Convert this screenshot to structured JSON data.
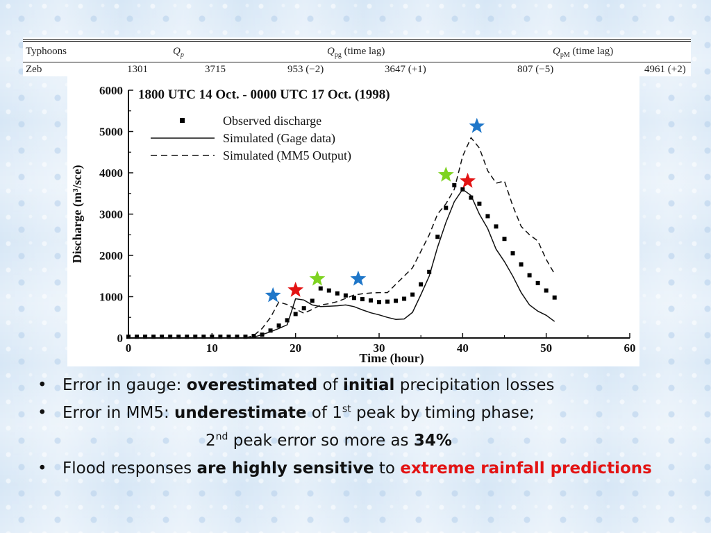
{
  "table": {
    "headers": [
      "Typhoons",
      "Q",
      "p",
      "Q",
      "pg",
      "(time lag)",
      "Q",
      "pM",
      "(time lag)"
    ],
    "row": [
      "Zeb",
      "1301",
      "3715",
      "953 (−2)",
      "3647 (+1)",
      "807 (−5)",
      "4961 (+2)"
    ]
  },
  "chart_data": {
    "type": "line",
    "title": "1800 UTC 14 Oct. - 0000 UTC 17 Oct. (1998)",
    "xlabel": "Time (hour)",
    "ylabel": "Discharge (m³/sce)",
    "xlim": [
      0,
      60
    ],
    "ylim": [
      0,
      6000
    ],
    "x_ticks": [
      0,
      10,
      20,
      30,
      40,
      50,
      60
    ],
    "y_ticks": [
      0,
      1000,
      2000,
      3000,
      4000,
      5000,
      6000
    ],
    "grid": false,
    "legend_position": "top-left",
    "series": [
      {
        "name": "Observed discharge",
        "style": "markers",
        "x": [
          0,
          1,
          2,
          3,
          4,
          5,
          6,
          7,
          8,
          9,
          10,
          11,
          12,
          13,
          14,
          15,
          16,
          17,
          18,
          19,
          20,
          21,
          22,
          23,
          24,
          25,
          26,
          27,
          28,
          29,
          30,
          31,
          32,
          33,
          34,
          35,
          36,
          37,
          38,
          39,
          40,
          41,
          42,
          43,
          44,
          45,
          46,
          47,
          48,
          49,
          50,
          51
        ],
        "y": [
          30,
          30,
          30,
          30,
          30,
          30,
          30,
          30,
          30,
          30,
          30,
          30,
          30,
          30,
          30,
          50,
          80,
          180,
          300,
          430,
          580,
          720,
          900,
          1200,
          1150,
          1080,
          1030,
          970,
          940,
          910,
          870,
          880,
          900,
          950,
          1050,
          1300,
          1600,
          2450,
          3150,
          3700,
          3600,
          3400,
          3250,
          2950,
          2700,
          2400,
          2050,
          1780,
          1520,
          1330,
          1150,
          980
        ]
      },
      {
        "name": "Simulated (Gage data)",
        "style": "solid",
        "x": [
          0,
          14,
          15,
          16,
          17,
          18,
          19,
          20,
          21,
          22,
          23,
          24,
          25,
          26,
          27,
          28,
          29,
          30,
          31,
          32,
          33,
          34,
          35,
          36,
          37,
          38,
          39,
          40,
          41,
          42,
          43,
          44,
          45,
          46,
          47,
          48,
          49,
          50,
          51
        ],
        "y": [
          0,
          0,
          20,
          80,
          150,
          230,
          320,
          950,
          920,
          800,
          760,
          770,
          780,
          800,
          760,
          680,
          610,
          560,
          500,
          450,
          460,
          620,
          1050,
          1500,
          2200,
          2800,
          3300,
          3600,
          3450,
          3000,
          2650,
          2150,
          1850,
          1500,
          1100,
          800,
          650,
          550,
          400
        ]
      },
      {
        "name": "Simulated (MM5 Output)",
        "style": "dashed",
        "x": [
          0,
          14,
          15,
          16,
          17,
          18,
          19,
          20,
          21,
          22,
          23,
          24,
          25,
          26,
          27,
          28,
          29,
          30,
          31,
          32,
          33,
          34,
          35,
          36,
          37,
          38,
          39,
          40,
          41,
          42,
          43,
          44,
          45,
          46,
          47,
          48,
          49,
          50,
          51
        ],
        "y": [
          0,
          0,
          60,
          230,
          500,
          870,
          810,
          700,
          600,
          690,
          800,
          830,
          880,
          960,
          1040,
          1070,
          1090,
          1100,
          1100,
          1300,
          1500,
          1700,
          2100,
          2500,
          3000,
          3250,
          3600,
          4400,
          4850,
          4600,
          4050,
          3750,
          3800,
          3200,
          2700,
          2500,
          2350,
          1900,
          1550
        ]
      }
    ],
    "markers": [
      {
        "shape": "star",
        "color": "#1f77c9",
        "x": 17.3,
        "y": 1030
      },
      {
        "shape": "star",
        "color": "#e31313",
        "x": 20.0,
        "y": 1160
      },
      {
        "shape": "star",
        "color": "#7ed321",
        "x": 22.6,
        "y": 1430
      },
      {
        "shape": "star",
        "color": "#1f77c9",
        "x": 27.5,
        "y": 1430
      },
      {
        "shape": "star",
        "color": "#7ed321",
        "x": 38.0,
        "y": 3950
      },
      {
        "shape": "star",
        "color": "#e31313",
        "x": 40.6,
        "y": 3800
      },
      {
        "shape": "star",
        "color": "#1f77c9",
        "x": 41.7,
        "y": 5130
      }
    ]
  },
  "bullets": {
    "b1_pre": "Error in gauge: ",
    "b1_bold1": "overestimated",
    "b1_mid": " of ",
    "b1_bold2": "initial",
    "b1_post": " precipitation losses",
    "b2_pre": "Error in MM5: ",
    "b2_bold": "underestimate",
    "b2_mid": " of 1",
    "b2_sup": "st",
    "b2_post": " peak by timing phase;",
    "b3_pre": "2",
    "b3_sup": "nd",
    "b3_mid": " peak error so more as ",
    "b3_bold": "34%",
    "b4_pre": "Flood responses ",
    "b4_bold": "are highly sensitive",
    "b4_mid": " to ",
    "b4_red": "extreme rainfall predictions",
    "bullet_char": "•"
  }
}
